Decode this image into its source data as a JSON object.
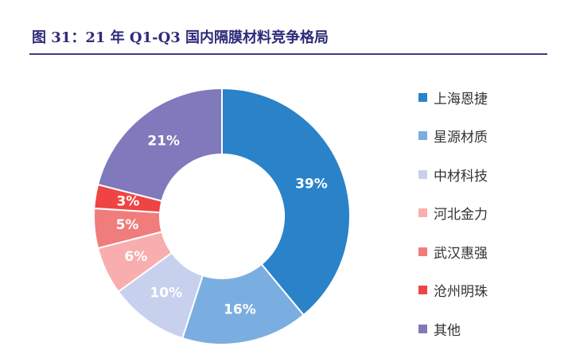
{
  "header": {
    "title": "图 31：21 年 Q1-Q3 国内隔膜材料竞争格局"
  },
  "chart_data": {
    "type": "pie",
    "donut": true,
    "title": "图 31：21 年 Q1-Q3 国内隔膜材料竞争格局",
    "legend_position": "right",
    "slices": [
      {
        "name": "上海恩捷",
        "value": 39,
        "label": "39%",
        "color": "#2a82c9"
      },
      {
        "name": "星源材质",
        "value": 16,
        "label": "16%",
        "color": "#7aaee0"
      },
      {
        "name": "中材科技",
        "value": 10,
        "label": "10%",
        "color": "#c7d1ee"
      },
      {
        "name": "河北金力",
        "value": 6,
        "label": "6%",
        "color": "#f8aeae"
      },
      {
        "name": "武汉惠强",
        "value": 5,
        "label": "5%",
        "color": "#f07c7c"
      },
      {
        "name": "沧州明珠",
        "value": 3,
        "label": "3%",
        "color": "#ee4444"
      },
      {
        "name": "其他",
        "value": 21,
        "label": "21%",
        "color": "#8079bb"
      }
    ]
  }
}
